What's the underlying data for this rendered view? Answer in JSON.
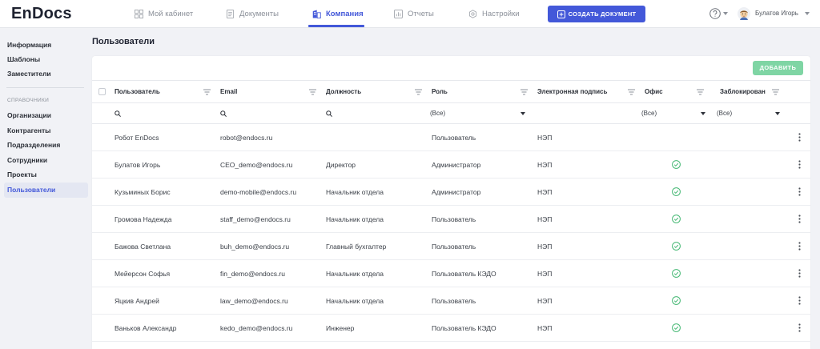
{
  "app": {
    "logo": "EnDocs"
  },
  "nav": {
    "items": [
      {
        "label": "Мой кабинет",
        "icon": "grid-icon",
        "active": false
      },
      {
        "label": "Документы",
        "icon": "document-icon",
        "active": false
      },
      {
        "label": "Компания",
        "icon": "building-icon",
        "active": true
      },
      {
        "label": "Отчеты",
        "icon": "chart-icon",
        "active": false
      },
      {
        "label": "Настройки",
        "icon": "gear-icon",
        "active": false
      }
    ],
    "create_button": {
      "label": "СОЗДАТЬ ДОКУМЕНТ",
      "icon": "plus-square-icon"
    },
    "help_icon": "help-icon",
    "user": {
      "name": "Булатов Игорь",
      "avatar_icon": "avatar-icon"
    }
  },
  "sidebar": {
    "items": [
      {
        "label": "Информация",
        "active": false
      },
      {
        "label": "Шаблоны",
        "active": false
      },
      {
        "label": "Заместители",
        "active": false
      }
    ],
    "section_title": "СПРАВОЧНИКИ",
    "directory_items": [
      {
        "label": "Организации",
        "active": false
      },
      {
        "label": "Контрагенты",
        "active": false
      },
      {
        "label": "Подразделения",
        "active": false
      },
      {
        "label": "Сотрудники",
        "active": false
      },
      {
        "label": "Проекты",
        "active": false
      },
      {
        "label": "Пользователи",
        "active": true
      }
    ]
  },
  "page": {
    "title": "Пользователи",
    "add_button": "ДОБАВИТЬ"
  },
  "table": {
    "columns": [
      "Пользователь",
      "Email",
      "Должность",
      "Роль",
      "Электронная подпись",
      "Офис",
      "Заблокирован"
    ],
    "filters": {
      "role": "(Все)",
      "office": "(Все)",
      "blocked": "(Все)"
    },
    "rows": [
      {
        "name": "Робот EnDocs",
        "email": "robot@endocs.ru",
        "position": "",
        "role": "Пользователь",
        "signature": "НЭП",
        "office": false
      },
      {
        "name": "Булатов Игорь",
        "email": "CEO_demo@endocs.ru",
        "position": "Директор",
        "role": "Администратор",
        "signature": "НЭП",
        "office": true
      },
      {
        "name": "Кузьминых Борис",
        "email": "demo-mobile@endocs.ru",
        "position": "Начальник отдела",
        "role": "Администратор",
        "signature": "НЭП",
        "office": true
      },
      {
        "name": "Громова Надежда",
        "email": "staff_demo@endocs.ru",
        "position": "Начальник отдела",
        "role": "Пользователь",
        "signature": "НЭП",
        "office": true
      },
      {
        "name": "Бажова Светлана",
        "email": "buh_demo@endocs.ru",
        "position": "Главный бухгалтер",
        "role": "Пользователь",
        "signature": "НЭП",
        "office": true
      },
      {
        "name": "Мейерсон Софья",
        "email": "fin_demo@endocs.ru",
        "position": "Начальник отдела",
        "role": "Пользователь КЭДО",
        "signature": "НЭП",
        "office": true
      },
      {
        "name": "Яцкив Андрей",
        "email": "law_demo@endocs.ru",
        "position": "Начальник отдела",
        "role": "Пользователь",
        "signature": "НЭП",
        "office": true
      },
      {
        "name": "Ваньков Александр",
        "email": "kedo_demo@endocs.ru",
        "position": "Инженер",
        "role": "Пользователь КЭДО",
        "signature": "НЭП",
        "office": true
      }
    ]
  },
  "colors": {
    "accent": "#4358d9",
    "add_button": "#7fd5a4",
    "success": "#45b874",
    "background": "#f1f2f6"
  }
}
